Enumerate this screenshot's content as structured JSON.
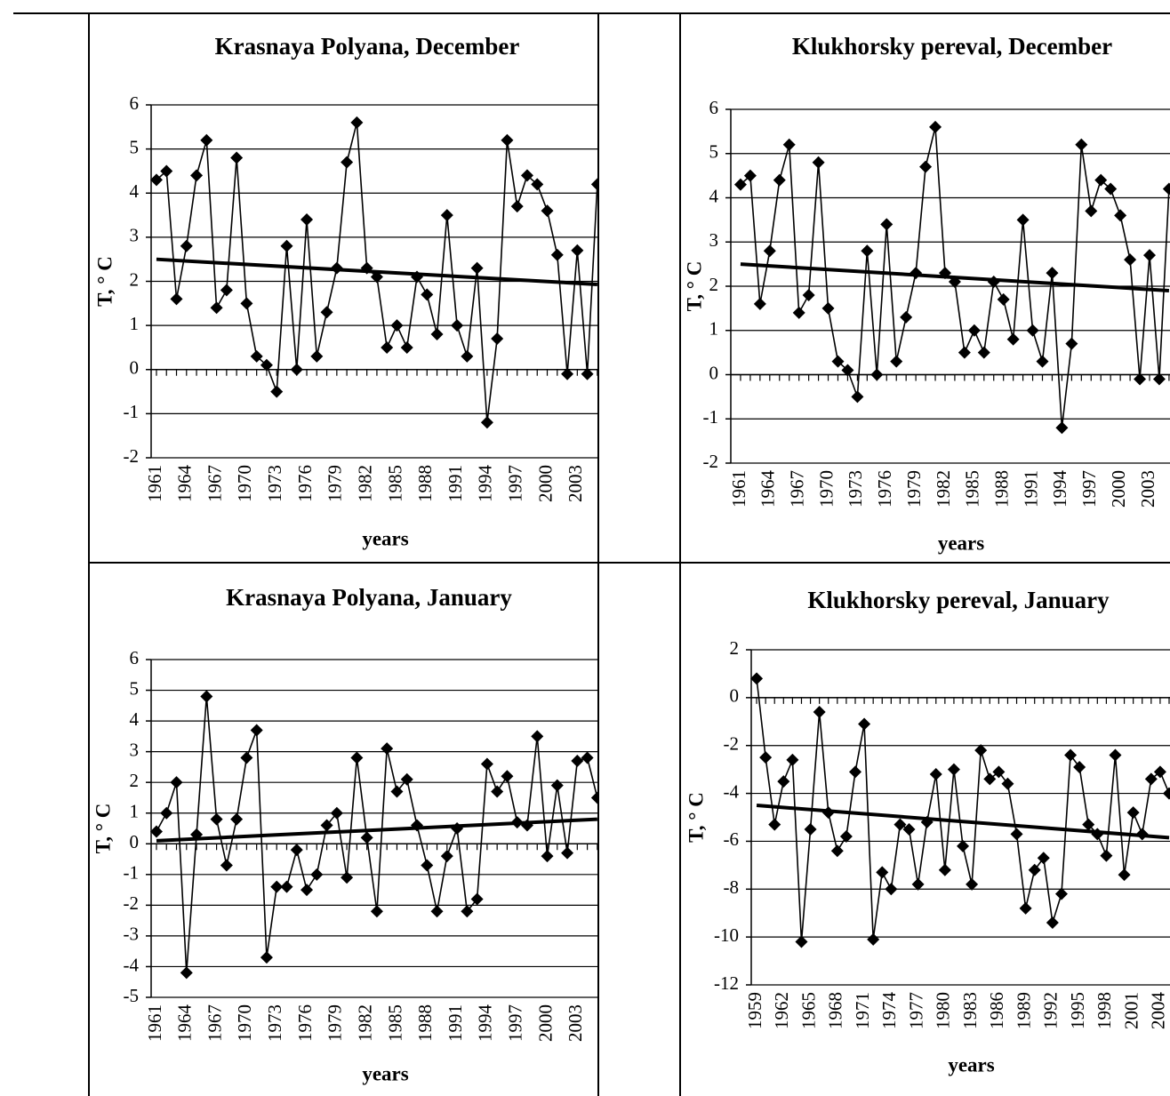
{
  "chart_data": [
    {
      "type": "line",
      "title": "Krasnaya Polyana, December",
      "ylabel": "T, ° C",
      "xlabel": "years",
      "x": [
        1961,
        1962,
        1963,
        1964,
        1965,
        1966,
        1967,
        1968,
        1969,
        1970,
        1971,
        1972,
        1973,
        1974,
        1975,
        1976,
        1977,
        1978,
        1979,
        1980,
        1981,
        1982,
        1983,
        1984,
        1985,
        1986,
        1987,
        1988,
        1989,
        1990,
        1991,
        1992,
        1993,
        1994,
        1995,
        1996,
        1997,
        1998,
        1999,
        2000,
        2001,
        2002,
        2003,
        2004,
        2005
      ],
      "series": [
        {
          "color": "#000000",
          "values": [
            4.3,
            4.5,
            1.6,
            2.8,
            4.4,
            5.2,
            1.4,
            1.8,
            4.8,
            1.5,
            0.3,
            0.1,
            -0.5,
            2.8,
            0.0,
            3.4,
            0.3,
            1.3,
            2.3,
            4.7,
            5.6,
            2.3,
            2.1,
            0.5,
            1.0,
            0.5,
            2.1,
            1.7,
            0.8,
            3.5,
            1.0,
            0.3,
            2.3,
            -1.2,
            0.7,
            5.2,
            3.7,
            4.4,
            4.2,
            3.6,
            2.6,
            -0.1,
            2.7,
            -0.1,
            4.2
          ]
        }
      ],
      "trend": {
        "x": [
          1961,
          2005
        ],
        "values": [
          2.5,
          1.93
        ]
      },
      "xlim": [
        1960.47,
        2005.1
      ],
      "xticks": [
        1961,
        1964,
        1967,
        1970,
        1973,
        1976,
        1979,
        1982,
        1985,
        1988,
        1991,
        1994,
        1997,
        2000,
        2003
      ],
      "ylim": [
        -2,
        6
      ],
      "yticks": [
        -2,
        -1,
        0,
        1,
        2,
        3,
        4,
        5,
        6
      ],
      "grid": true
    },
    {
      "type": "line",
      "title": "Klukhorsky pereval, December",
      "ylabel": "T, ° C",
      "xlabel": "years",
      "x": [
        1961,
        1962,
        1963,
        1964,
        1965,
        1966,
        1967,
        1968,
        1969,
        1970,
        1971,
        1972,
        1973,
        1974,
        1975,
        1976,
        1977,
        1978,
        1979,
        1980,
        1981,
        1982,
        1983,
        1984,
        1985,
        1986,
        1987,
        1988,
        1989,
        1990,
        1991,
        1992,
        1993,
        1994,
        1995,
        1996,
        1997,
        1998,
        1999,
        2000,
        2001,
        2002,
        2003,
        2004,
        2005
      ],
      "series": [
        {
          "color": "#000000",
          "values": [
            4.3,
            4.5,
            1.6,
            2.8,
            4.4,
            5.2,
            1.4,
            1.8,
            4.8,
            1.5,
            0.3,
            0.1,
            -0.5,
            2.8,
            0.0,
            3.4,
            0.3,
            1.3,
            2.3,
            4.7,
            5.6,
            2.3,
            2.1,
            0.5,
            1.0,
            0.5,
            2.1,
            1.7,
            0.8,
            3.5,
            1.0,
            0.3,
            2.3,
            -1.2,
            0.7,
            5.2,
            3.7,
            4.4,
            4.2,
            3.6,
            2.6,
            -0.1,
            2.7,
            -0.1,
            4.2
          ]
        }
      ],
      "trend": {
        "x": [
          1961,
          2005
        ],
        "values": [
          2.5,
          1.9
        ]
      },
      "xlim": [
        1960.0,
        2005.1
      ],
      "xticks": [
        1961,
        1964,
        1967,
        1970,
        1973,
        1976,
        1979,
        1982,
        1985,
        1988,
        1991,
        1994,
        1997,
        2000,
        2003
      ],
      "ylim": [
        -2,
        6
      ],
      "yticks": [
        -2,
        -1,
        0,
        1,
        2,
        3,
        4,
        5,
        6
      ],
      "grid": true
    },
    {
      "type": "line",
      "title": "Krasnaya Polyana, January",
      "ylabel": "T, ° C",
      "xlabel": "years",
      "x": [
        1961,
        1962,
        1963,
        1964,
        1965,
        1966,
        1967,
        1968,
        1969,
        1970,
        1971,
        1972,
        1973,
        1974,
        1975,
        1976,
        1977,
        1978,
        1979,
        1980,
        1981,
        1982,
        1983,
        1984,
        1985,
        1986,
        1987,
        1988,
        1989,
        1990,
        1991,
        1992,
        1993,
        1994,
        1995,
        1996,
        1997,
        1998,
        1999,
        2000,
        2001,
        2002,
        2003,
        2004,
        2005
      ],
      "series": [
        {
          "color": "#000000",
          "values": [
            0.4,
            1.0,
            2.0,
            -4.2,
            0.3,
            4.8,
            0.8,
            -0.7,
            0.8,
            2.8,
            3.7,
            -3.7,
            -1.4,
            -1.4,
            -0.2,
            -1.5,
            -1.0,
            0.6,
            1.0,
            -1.1,
            2.8,
            0.2,
            -2.2,
            3.1,
            1.7,
            2.1,
            0.6,
            -0.7,
            -2.2,
            -0.4,
            0.5,
            -2.2,
            -1.8,
            2.6,
            1.7,
            2.2,
            0.7,
            0.6,
            3.5,
            -0.4,
            1.9,
            -0.3,
            2.7,
            2.8,
            1.5
          ]
        }
      ],
      "trend": {
        "x": [
          1961,
          2005
        ],
        "values": [
          0.1,
          0.8
        ]
      },
      "xlim": [
        1960.47,
        2005.1
      ],
      "xticks": [
        1961,
        1964,
        1967,
        1970,
        1973,
        1976,
        1979,
        1982,
        1985,
        1988,
        1991,
        1994,
        1997,
        2000,
        2003
      ],
      "ylim": [
        -5,
        6
      ],
      "yticks": [
        -5,
        -4,
        -3,
        -2,
        -1,
        0,
        1,
        2,
        3,
        4,
        5,
        6
      ],
      "grid": true
    },
    {
      "type": "line",
      "title": "Klukhorsky pereval, January",
      "ylabel": "T, ° C",
      "xlabel": "years",
      "x": [
        1959,
        1960,
        1961,
        1962,
        1963,
        1964,
        1965,
        1966,
        1967,
        1968,
        1969,
        1970,
        1971,
        1972,
        1973,
        1974,
        1975,
        1976,
        1977,
        1978,
        1979,
        1980,
        1981,
        1982,
        1983,
        1984,
        1985,
        1986,
        1987,
        1988,
        1989,
        1990,
        1991,
        1992,
        1993,
        1994,
        1995,
        1996,
        1997,
        1998,
        1999,
        2000,
        2001,
        2002,
        2003,
        2004,
        2005
      ],
      "series": [
        {
          "color": "#000000",
          "values": [
            0.8,
            -2.5,
            -5.3,
            -3.5,
            -2.6,
            -10.2,
            -5.5,
            -0.6,
            -4.8,
            -6.4,
            -5.8,
            -3.1,
            -1.1,
            -10.1,
            -7.3,
            -8.0,
            -5.3,
            -5.5,
            -7.8,
            -5.2,
            -3.2,
            -7.2,
            -3.0,
            -6.2,
            -7.8,
            -2.2,
            -3.4,
            -3.1,
            -3.6,
            -5.7,
            -8.8,
            -7.2,
            -6.7,
            -9.4,
            -8.2,
            -2.4,
            -2.9,
            -5.3,
            -5.7,
            -6.6,
            -2.4,
            -7.4,
            -4.8,
            -5.7,
            -3.4,
            -3.1,
            -4.0
          ]
        }
      ],
      "trend": {
        "x": [
          1959,
          2005
        ],
        "values": [
          -4.5,
          -5.85
        ]
      },
      "xlim": [
        1958.4,
        2005.1
      ],
      "xticks": [
        1959,
        1962,
        1965,
        1968,
        1971,
        1974,
        1977,
        1980,
        1983,
        1986,
        1989,
        1992,
        1995,
        1998,
        2001,
        2004
      ],
      "ylim": [
        -12,
        2
      ],
      "yticks": [
        -12,
        -10,
        -8,
        -6,
        -4,
        -2,
        0,
        2
      ],
      "grid": true
    }
  ]
}
